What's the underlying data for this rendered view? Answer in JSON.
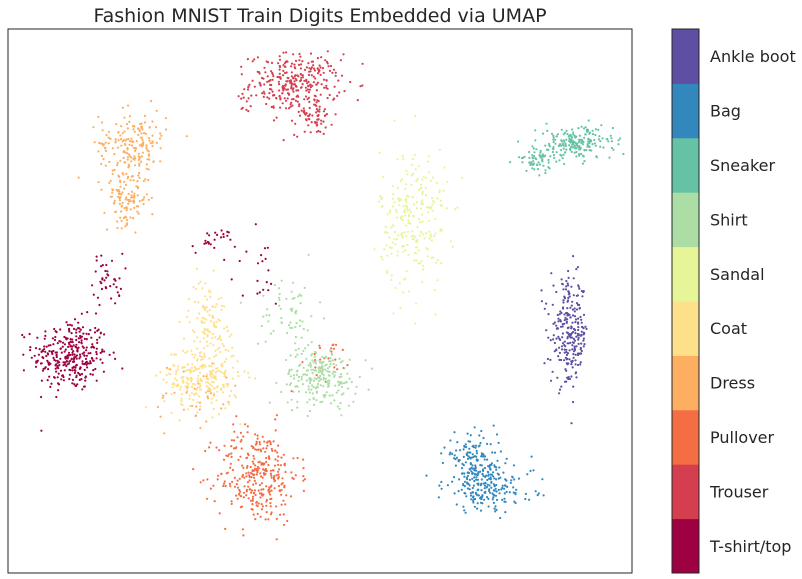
{
  "chart_data": {
    "type": "scatter",
    "title": "Fashion MNIST Train Digits Embedded via UMAP",
    "xlabel": "",
    "ylabel": "",
    "axes_ticks": false,
    "grid": false,
    "colorbar": {
      "placement": "right",
      "categories": [
        {
          "label": "T-shirt/top",
          "color": "#9e0142"
        },
        {
          "label": "Trouser",
          "color": "#d53e4f"
        },
        {
          "label": "Pullover",
          "color": "#f46d43"
        },
        {
          "label": "Dress",
          "color": "#fdae61"
        },
        {
          "label": "Coat",
          "color": "#fee08b"
        },
        {
          "label": "Sandal",
          "color": "#e6f598"
        },
        {
          "label": "Shirt",
          "color": "#abdda4"
        },
        {
          "label": "Sneaker",
          "color": "#66c2a5"
        },
        {
          "label": "Bag",
          "color": "#3288bd"
        },
        {
          "label": "Ankle boot",
          "color": "#5e4fa2"
        }
      ]
    },
    "series": [
      {
        "class": 0,
        "clusters": [
          [
            0.1,
            0.4,
            0.05,
            0.055,
            320
          ],
          [
            0.16,
            0.54,
            0.02,
            0.04,
            40
          ],
          [
            0.33,
            0.61,
            0.03,
            0.02,
            25
          ],
          [
            0.4,
            0.55,
            0.04,
            0.06,
            20
          ]
        ]
      },
      {
        "class": 1,
        "clusters": [
          [
            0.46,
            0.9,
            0.06,
            0.045,
            300
          ],
          [
            0.49,
            0.84,
            0.025,
            0.03,
            60
          ],
          [
            0.38,
            0.86,
            0.01,
            0.01,
            6
          ]
        ]
      },
      {
        "class": 2,
        "clusters": [
          [
            0.4,
            0.18,
            0.055,
            0.075,
            320
          ],
          [
            0.52,
            0.39,
            0.03,
            0.03,
            25
          ]
        ]
      },
      {
        "class": 3,
        "clusters": [
          [
            0.2,
            0.79,
            0.045,
            0.05,
            180
          ],
          [
            0.19,
            0.69,
            0.03,
            0.04,
            110
          ],
          [
            0.3,
            0.32,
            0.06,
            0.06,
            40
          ]
        ]
      },
      {
        "class": 4,
        "clusters": [
          [
            0.31,
            0.36,
            0.05,
            0.05,
            240
          ],
          [
            0.32,
            0.47,
            0.025,
            0.06,
            100
          ]
        ]
      },
      {
        "class": 5,
        "clusters": [
          [
            0.65,
            0.65,
            0.045,
            0.11,
            240
          ]
        ]
      },
      {
        "class": 6,
        "clusters": [
          [
            0.5,
            0.36,
            0.05,
            0.045,
            220
          ],
          [
            0.45,
            0.48,
            0.04,
            0.06,
            60
          ]
        ]
      },
      {
        "class": 7,
        "clusters": [
          [
            0.91,
            0.79,
            0.05,
            0.025,
            200
          ],
          [
            0.85,
            0.76,
            0.03,
            0.02,
            60
          ]
        ]
      },
      {
        "class": 8,
        "clusters": [
          [
            0.77,
            0.16,
            0.06,
            0.04,
            200
          ],
          [
            0.74,
            0.22,
            0.035,
            0.03,
            80
          ],
          [
            0.75,
            0.18,
            0.03,
            0.03,
            50
          ]
        ]
      },
      {
        "class": 9,
        "clusters": [
          [
            0.9,
            0.44,
            0.025,
            0.08,
            260
          ]
        ]
      }
    ]
  }
}
